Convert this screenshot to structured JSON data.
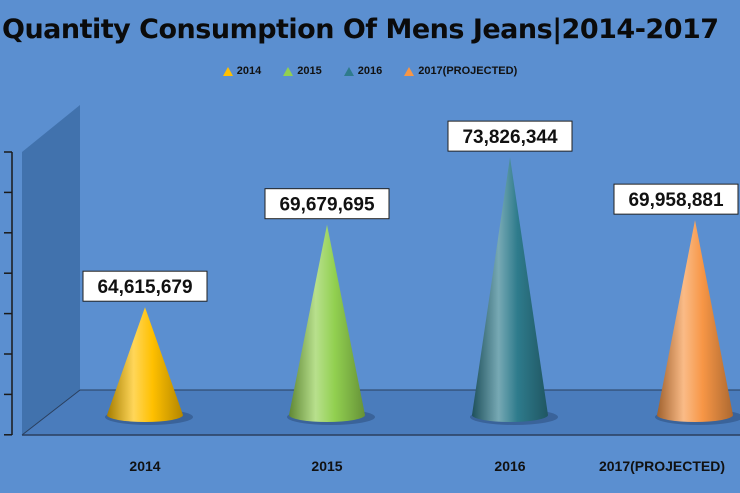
{
  "chart_data": {
    "type": "bar",
    "title": "Quantity Consumption Of Mens Jeans|2014-2017",
    "categories": [
      "2014",
      "2015",
      "2016",
      "2017(PROJECTED)"
    ],
    "values": [
      64615679,
      69679695,
      73826344,
      69958881
    ],
    "value_labels": [
      "64,615,679",
      "69,679,695",
      "73,826,344",
      "69,958,881"
    ],
    "series_colors": [
      "#FFC000",
      "#92D050",
      "#2E7B8C",
      "#F79646"
    ],
    "ylim": [
      58000000,
      75000000
    ],
    "legend": [
      "2014",
      "2015",
      "2016",
      "2017(PROJECTED)"
    ],
    "legend_position": "top",
    "gridlines": false,
    "shape": "cone-3d"
  }
}
